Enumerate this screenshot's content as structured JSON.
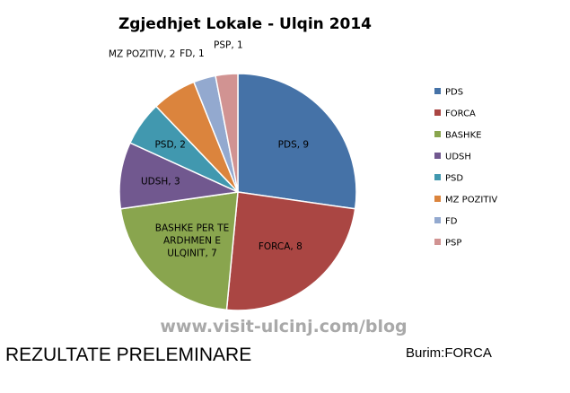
{
  "chart_data": {
    "type": "pie",
    "title": "Zgjedhjet Lokale - Ulqin 2014",
    "series": [
      {
        "categories": [
          "PDS",
          "FORCA",
          "BASHKE",
          "UDSH",
          "PSD",
          "MZ POZITIV",
          "FD",
          "PSP"
        ],
        "values": [
          9,
          8,
          7,
          3,
          2,
          2,
          1,
          1
        ]
      }
    ],
    "slice_labels": [
      "PDS, 9",
      "FORCA, 8",
      "BASHKE PER TE ARDHMEN E ULQINIT, 7",
      "UDSH, 3",
      "PSD, 2",
      "MZ POZITIV, 2",
      "FD, 1",
      "PSP, 1"
    ],
    "colors": [
      "#4572a7",
      "#aa4643",
      "#89a54e",
      "#71588f",
      "#4198af",
      "#db843d",
      "#93a9cf",
      "#d19392"
    ],
    "start_angle": "12 o'clock",
    "direction": "clockwise",
    "legend": {
      "position": "right",
      "entries": [
        "PDS",
        "FORCA",
        "BASHKE",
        "UDSH",
        "PSD",
        "MZ POZITIV",
        "FD",
        "PSP"
      ]
    }
  },
  "watermark": "www.visit-ulcinj.com/blog",
  "footer": {
    "left_text": "REZULTATE PRELEMINARE",
    "right_text": "Burim:FORCA"
  }
}
